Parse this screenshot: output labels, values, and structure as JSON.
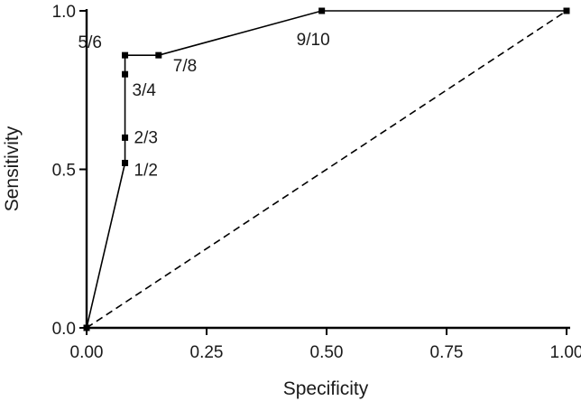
{
  "chart_data": {
    "type": "line",
    "title": "",
    "xlabel": "Specificity",
    "ylabel": "Sensitivity",
    "xlim": [
      0,
      1
    ],
    "ylim": [
      0,
      1
    ],
    "grid": false,
    "legend": "none",
    "x_ticks": [
      {
        "value": 0.0,
        "label": "0.00"
      },
      {
        "value": 0.25,
        "label": "0.25"
      },
      {
        "value": 0.5,
        "label": "0.50"
      },
      {
        "value": 0.75,
        "label": "0.75"
      },
      {
        "value": 1.0,
        "label": "1.00"
      }
    ],
    "y_ticks": [
      {
        "value": 0.0,
        "label": "0.0"
      },
      {
        "value": 0.5,
        "label": "0.5"
      },
      {
        "value": 1.0,
        "label": "1.0"
      }
    ],
    "series": [
      {
        "style": "solid",
        "color": "#000000",
        "points": [
          {
            "x": 0.0,
            "y": 0.0,
            "label": ""
          },
          {
            "x": 0.08,
            "y": 0.52,
            "label": "1/2"
          },
          {
            "x": 0.08,
            "y": 0.6,
            "label": "2/3"
          },
          {
            "x": 0.08,
            "y": 0.8,
            "label": "3/4"
          },
          {
            "x": 0.08,
            "y": 0.86,
            "label": "5/6"
          },
          {
            "x": 0.15,
            "y": 0.86,
            "label": "7/8"
          },
          {
            "x": 0.49,
            "y": 1.0,
            "label": "9/10"
          },
          {
            "x": 1.0,
            "y": 1.0,
            "label": ""
          }
        ]
      },
      {
        "style": "dashed",
        "color": "#000000",
        "points": [
          {
            "x": 0.0,
            "y": 0.0,
            "label": ""
          },
          {
            "x": 1.0,
            "y": 1.0,
            "label": ""
          }
        ]
      }
    ]
  }
}
